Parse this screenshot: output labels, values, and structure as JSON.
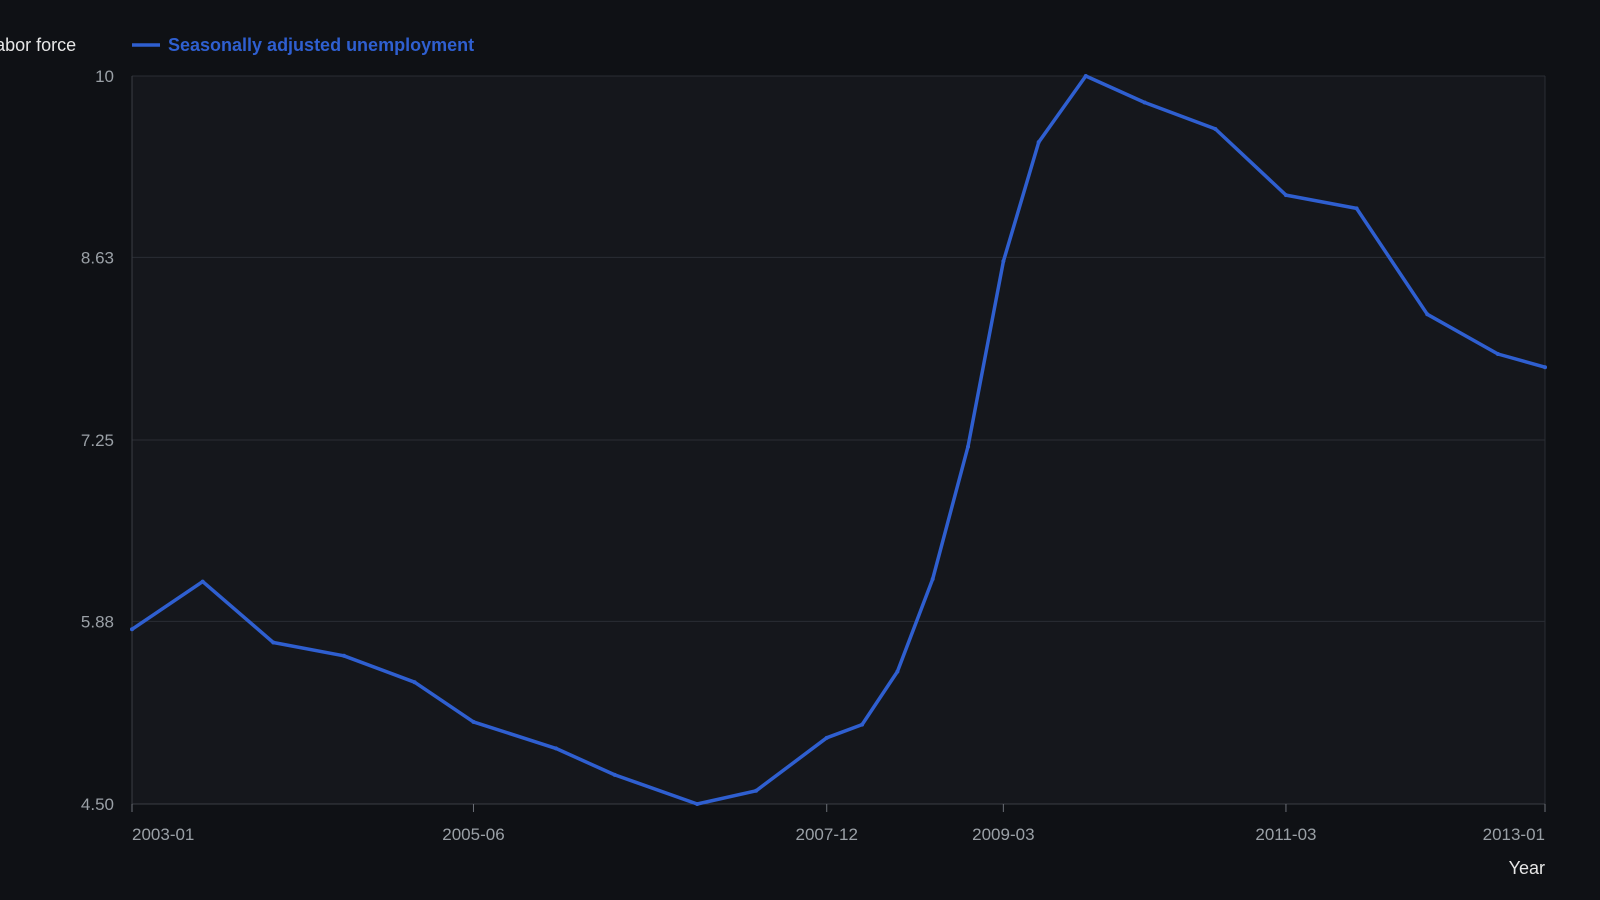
{
  "chart_data": {
    "type": "line",
    "legend": {
      "placement": "top-left",
      "entries": [
        {
          "label": "Unemployment rate of the civilian labor force",
          "color": "#e6e6e6",
          "active": false
        },
        {
          "label": "Seasonally adjusted unemployment",
          "color": "#2f5fd0",
          "active": true
        }
      ]
    },
    "xlabel": "Year",
    "ylabel": "",
    "x_ticks": [
      "2003-01",
      "2005-06",
      "2007-12",
      "2009-03",
      "2011-03",
      "2013-01"
    ],
    "y_ticks": [
      "10",
      "8.63",
      "7.25",
      "5.88",
      "4.50"
    ],
    "ylim": [
      4.5,
      10
    ],
    "grid": true,
    "series": [
      {
        "name": "Seasonally adjusted unemployment",
        "color": "#2f5fd0",
        "points": [
          {
            "x": "2003-01",
            "y": 5.82
          },
          {
            "x": "2003-07",
            "y": 6.18
          },
          {
            "x": "2004-01",
            "y": 5.72
          },
          {
            "x": "2004-07",
            "y": 5.62
          },
          {
            "x": "2005-01",
            "y": 5.42
          },
          {
            "x": "2005-06",
            "y": 5.12
          },
          {
            "x": "2006-01",
            "y": 4.92
          },
          {
            "x": "2006-06",
            "y": 4.72
          },
          {
            "x": "2007-01",
            "y": 4.5
          },
          {
            "x": "2007-06",
            "y": 4.6
          },
          {
            "x": "2007-12",
            "y": 5.0
          },
          {
            "x": "2008-03",
            "y": 5.1
          },
          {
            "x": "2008-06",
            "y": 5.5
          },
          {
            "x": "2008-09",
            "y": 6.2
          },
          {
            "x": "2008-12",
            "y": 7.2
          },
          {
            "x": "2009-03",
            "y": 8.6
          },
          {
            "x": "2009-06",
            "y": 9.5
          },
          {
            "x": "2009-10",
            "y": 10.0
          },
          {
            "x": "2010-03",
            "y": 9.8
          },
          {
            "x": "2010-09",
            "y": 9.6
          },
          {
            "x": "2011-03",
            "y": 9.1
          },
          {
            "x": "2011-09",
            "y": 9.0
          },
          {
            "x": "2012-03",
            "y": 8.2
          },
          {
            "x": "2012-09",
            "y": 7.9
          },
          {
            "x": "2013-01",
            "y": 7.8
          }
        ]
      }
    ]
  }
}
